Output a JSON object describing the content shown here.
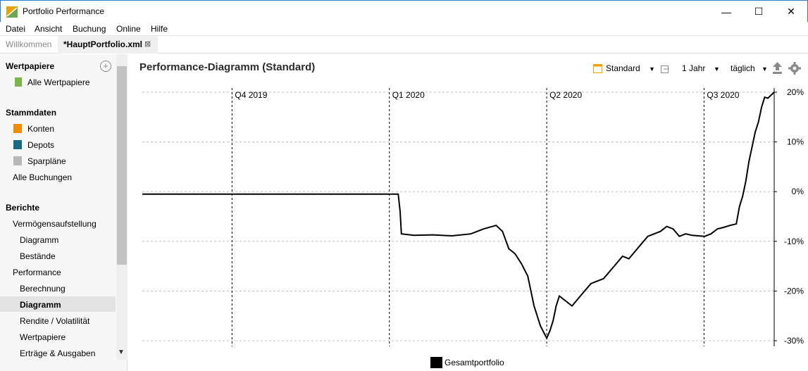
{
  "window": {
    "title": "Portfolio Performance",
    "minimize": "—",
    "maximize": "☐",
    "close": "✕"
  },
  "menu": [
    {
      "label": "Datei"
    },
    {
      "label": "Ansicht"
    },
    {
      "label": "Buchung"
    },
    {
      "label": "Online"
    },
    {
      "label": "Hilfe"
    }
  ],
  "tabs": {
    "inactive": "Willkommen",
    "active": "*HauptPortfolio.xml",
    "close_icon": "⊠"
  },
  "sidebar": {
    "wertpapiere_heading": "Wertpapiere",
    "alle_wertpapiere": "Alle Wertpapiere",
    "stammdaten_heading": "Stammdaten",
    "konten": "Konten",
    "depots": "Depots",
    "sparplaene": "Sparpläne",
    "alle_buchungen": "Alle Buchungen",
    "berichte_heading": "Berichte",
    "vermoegensaufstellung": "Vermögensaufstellung",
    "diagramm_sub": "Diagramm",
    "bestaende": "Bestände",
    "performance": "Performance",
    "berechnung": "Berechnung",
    "diagramm_selected": "Diagramm",
    "rendite": "Rendite / Volatilität",
    "wertpapiere_sub": "Wertpapiere",
    "ertraege": "Erträge & Ausgaben",
    "colors": {
      "konten": "#f28c00",
      "depots": "#1a6b86",
      "sparplaene": "#b8b8b8",
      "wertpapier": "#7ab648"
    }
  },
  "main": {
    "title": "Performance-Diagramm (Standard)",
    "toolbar": {
      "view": "Standard",
      "period": "1 Jahr",
      "interval": "täglich"
    }
  },
  "chart_data": {
    "type": "line",
    "quarter_labels": [
      "Q4 2019",
      "Q1 2020",
      "Q2 2020",
      "Q3 2020"
    ],
    "y_ticks": [
      "20%",
      "10%",
      "0%",
      "-10%",
      "-20%",
      "-30%"
    ],
    "ylim": [
      -30,
      20
    ],
    "grid": true,
    "legend": "bottom-center",
    "series": [
      {
        "name": "Gesamtportfolio",
        "color": "#000000",
        "x": [
          0,
          0.405,
          0.408,
          0.41,
          0.43,
          0.46,
          0.49,
          0.52,
          0.54,
          0.56,
          0.57,
          0.58,
          0.585,
          0.59,
          0.6,
          0.61,
          0.62,
          0.63,
          0.64,
          0.645,
          0.65,
          0.655,
          0.66,
          0.67,
          0.68,
          0.69,
          0.7,
          0.71,
          0.72,
          0.73,
          0.74,
          0.75,
          0.76,
          0.77,
          0.78,
          0.79,
          0.8,
          0.81,
          0.82,
          0.83,
          0.84,
          0.85,
          0.86,
          0.87,
          0.88,
          0.89,
          0.9,
          0.91,
          0.92,
          0.93,
          0.94,
          0.945,
          0.95,
          0.955,
          0.96,
          0.965,
          0.97,
          0.975,
          0.98,
          0.985,
          0.99,
          1.0
        ],
        "y": [
          -0.5,
          -0.5,
          -4,
          -8.5,
          -8.8,
          -8.7,
          -8.9,
          -8.5,
          -7.5,
          -6.8,
          -8,
          -11.5,
          -12,
          -12.5,
          -14.5,
          -17,
          -23,
          -27,
          -29.5,
          -28,
          -26,
          -23,
          -21,
          -22,
          -23,
          -21.5,
          -20,
          -18.5,
          -18,
          -17.5,
          -16,
          -14.5,
          -13,
          -13.5,
          -12,
          -10.5,
          -9,
          -8.5,
          -8,
          -7,
          -7.5,
          -9,
          -8.5,
          -8.8,
          -8.9,
          -9,
          -8.5,
          -7.5,
          -7.2,
          -6.8,
          -6.5,
          -3,
          -1,
          2,
          6,
          9,
          12,
          14,
          17,
          19,
          18.8,
          20
        ]
      }
    ]
  }
}
